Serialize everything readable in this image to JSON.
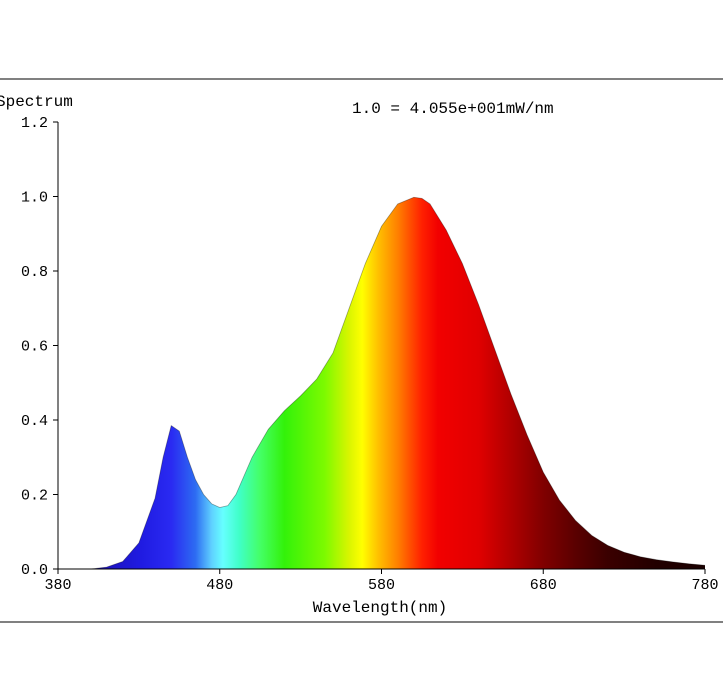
{
  "chart_data": {
    "type": "area",
    "title": "Spectrum",
    "annotation": "1.0 = 4.055e+001mW/nm",
    "xlabel": "Wavelength(nm)",
    "ylabel": "",
    "xlim": [
      380,
      780
    ],
    "ylim": [
      0,
      1.2
    ],
    "xticks": [
      "380",
      "480",
      "580",
      "680",
      "780"
    ],
    "yticks": [
      "0.0",
      "0.2",
      "0.4",
      "0.6",
      "0.8",
      "1.0",
      "1.2"
    ],
    "fill": "spectral colour gradient (wavelength to RGB)",
    "x": [
      380,
      400,
      410,
      420,
      430,
      440,
      445,
      450,
      455,
      460,
      465,
      470,
      475,
      480,
      485,
      490,
      500,
      510,
      520,
      530,
      540,
      550,
      560,
      570,
      580,
      590,
      600,
      605,
      610,
      620,
      630,
      640,
      650,
      660,
      670,
      680,
      690,
      700,
      710,
      720,
      730,
      740,
      750,
      760,
      770,
      780
    ],
    "values": [
      0.0,
      0.0,
      0.005,
      0.02,
      0.07,
      0.19,
      0.3,
      0.385,
      0.37,
      0.3,
      0.24,
      0.2,
      0.175,
      0.165,
      0.17,
      0.2,
      0.3,
      0.375,
      0.425,
      0.465,
      0.51,
      0.58,
      0.7,
      0.82,
      0.92,
      0.98,
      0.998,
      0.995,
      0.98,
      0.91,
      0.82,
      0.71,
      0.59,
      0.47,
      0.36,
      0.26,
      0.185,
      0.13,
      0.09,
      0.063,
      0.045,
      0.033,
      0.025,
      0.019,
      0.014,
      0.01
    ]
  }
}
